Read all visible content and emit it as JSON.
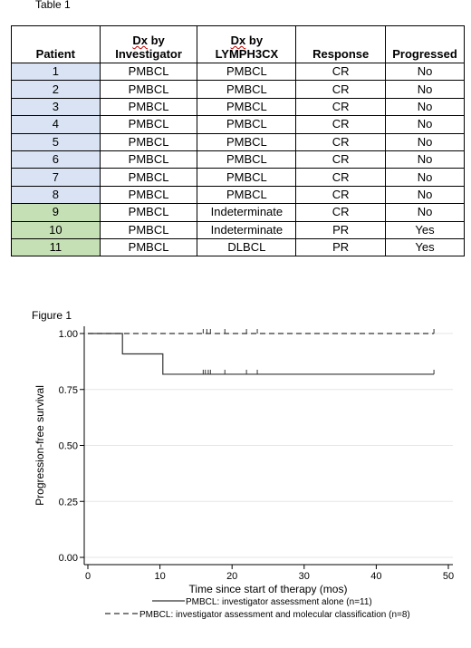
{
  "table_caption": "Table 1",
  "figure_caption": "Figure 1",
  "table": {
    "headers": [
      {
        "line1": "",
        "line2": "Patient",
        "underline_line1": false
      },
      {
        "line1": "Dx by",
        "line2": "Investigator",
        "underline_line1": true
      },
      {
        "line1": "Dx by",
        "line2": "LYMPH3CX",
        "underline_line1": true
      },
      {
        "line1": "",
        "line2": "Response",
        "underline_line1": false
      },
      {
        "line1": "",
        "line2": "Progressed",
        "underline_line1": false
      }
    ],
    "rows": [
      {
        "patient": "1",
        "dx_investigator": "PMBCL",
        "dx_lymph3cx": "PMBCL",
        "response": "CR",
        "progressed": "No",
        "highlight": "blue"
      },
      {
        "patient": "2",
        "dx_investigator": "PMBCL",
        "dx_lymph3cx": "PMBCL",
        "response": "CR",
        "progressed": "No",
        "highlight": "blue"
      },
      {
        "patient": "3",
        "dx_investigator": "PMBCL",
        "dx_lymph3cx": "PMBCL",
        "response": "CR",
        "progressed": "No",
        "highlight": "blue"
      },
      {
        "patient": "4",
        "dx_investigator": "PMBCL",
        "dx_lymph3cx": "PMBCL",
        "response": "CR",
        "progressed": "No",
        "highlight": "blue"
      },
      {
        "patient": "5",
        "dx_investigator": "PMBCL",
        "dx_lymph3cx": "PMBCL",
        "response": "CR",
        "progressed": "No",
        "highlight": "blue"
      },
      {
        "patient": "6",
        "dx_investigator": "PMBCL",
        "dx_lymph3cx": "PMBCL",
        "response": "CR",
        "progressed": "No",
        "highlight": "blue"
      },
      {
        "patient": "7",
        "dx_investigator": "PMBCL",
        "dx_lymph3cx": "PMBCL",
        "response": "CR",
        "progressed": "No",
        "highlight": "blue"
      },
      {
        "patient": "8",
        "dx_investigator": "PMBCL",
        "dx_lymph3cx": "PMBCL",
        "response": "CR",
        "progressed": "No",
        "highlight": "blue"
      },
      {
        "patient": "9",
        "dx_investigator": "PMBCL",
        "dx_lymph3cx": "Indeterminate",
        "response": "CR",
        "progressed": "No",
        "highlight": "green"
      },
      {
        "patient": "10",
        "dx_investigator": "PMBCL",
        "dx_lymph3cx": "Indeterminate",
        "response": "PR",
        "progressed": "Yes",
        "highlight": "green"
      },
      {
        "patient": "11",
        "dx_investigator": "PMBCL",
        "dx_lymph3cx": "DLBCL",
        "response": "PR",
        "progressed": "Yes",
        "highlight": "green"
      }
    ],
    "colors": {
      "blue": "#dae3f3",
      "green": "#c5e0b4",
      "squiggle": "#c00000"
    }
  },
  "chart_data": {
    "type": "line",
    "subtype": "kaplan-meier step",
    "xlabel": "Time since start of therapy (mos)",
    "ylabel": "Progression-free survival",
    "xlim": [
      0,
      50
    ],
    "ylim": [
      0,
      1
    ],
    "xticks": [
      0,
      10,
      20,
      30,
      40,
      50
    ],
    "xtick_labels": [
      "0",
      "10",
      "20",
      "30",
      "40",
      "50"
    ],
    "yticks": [
      0,
      0.25,
      0.5,
      0.75,
      1
    ],
    "ytick_labels": [
      "0.00",
      "0.25",
      "0.50",
      "0.75",
      "1.00"
    ],
    "grid": "horizontal",
    "grid_color": "#e6e6e6",
    "legend_position": "bottom",
    "series": [
      {
        "name": "PMBCL: investigator assessment alone (n=11)",
        "style": "solid",
        "color": "#333333",
        "steps": [
          [
            0,
            1.0
          ],
          [
            4.8,
            0.909
          ],
          [
            10.4,
            0.818
          ],
          [
            48,
            0.818
          ]
        ],
        "censor_times": [
          16,
          16.3,
          16.7,
          17,
          19,
          22,
          23.5,
          48
        ]
      },
      {
        "name": "PMBCL: investigator assessment and molecular classification (n=8)",
        "style": "dashed",
        "color": "#333333",
        "steps": [
          [
            0,
            1.0
          ],
          [
            48,
            1.0
          ]
        ],
        "censor_times": [
          16,
          16.5,
          17,
          19,
          22,
          23.5,
          48
        ]
      }
    ]
  }
}
